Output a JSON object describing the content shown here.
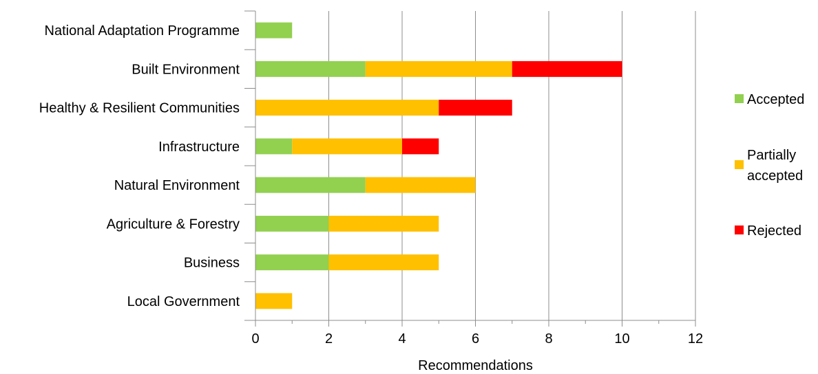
{
  "chart_data": {
    "type": "bar",
    "orientation": "horizontal",
    "stacked": true,
    "title": "",
    "xlabel": "Recommendations",
    "ylabel": "",
    "xlim": [
      0,
      12
    ],
    "xticks": [
      0,
      2,
      4,
      6,
      8,
      10,
      12
    ],
    "grid": "vertical major gridlines",
    "legend_position": "right",
    "categories": [
      "National Adaptation Programme",
      "Built Environment",
      "Healthy & Resilient Communities",
      "Infrastructure",
      "Natural Environment",
      "Agriculture & Forestry",
      "Business",
      "Local Government"
    ],
    "series": [
      {
        "name": "Accepted",
        "color": "#92D050",
        "values": [
          1,
          3,
          0,
          1,
          3,
          2,
          2,
          0
        ]
      },
      {
        "name": "Partially accepted",
        "legend_lines": [
          "Partially",
          "accepted"
        ],
        "color": "#FFC000",
        "values": [
          0,
          4,
          5,
          3,
          3,
          3,
          3,
          1
        ]
      },
      {
        "name": "Rejected",
        "color": "#FF0000",
        "values": [
          0,
          3,
          2,
          1,
          0,
          0,
          0,
          0
        ]
      }
    ]
  }
}
